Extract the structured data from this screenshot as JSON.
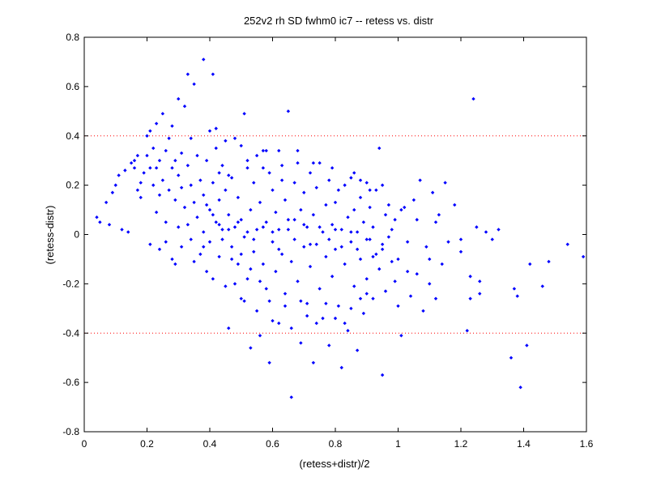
{
  "chart_data": {
    "type": "scatter",
    "title": "252v2 rh SD fwhm0 ic7 -- retess vs. distr",
    "xlabel": "(retess+distr)/2",
    "ylabel": "(retess-distr)",
    "xlim": [
      0,
      1.6
    ],
    "ylim": [
      -0.8,
      0.8
    ],
    "xticks": [
      "0",
      "0.2",
      "0.4",
      "0.6",
      "0.8",
      "1",
      "1.2",
      "1.4",
      "1.6"
    ],
    "yticks": [
      "0.8",
      "0.6",
      "0.4",
      "0.2",
      "0",
      "-0.2",
      "-0.4",
      "-0.6",
      "-0.8"
    ],
    "grid": false,
    "reference_lines": [
      0.4,
      -0.4
    ],
    "colors": {
      "points": "#0000ff",
      "reference_lines": "#ff0000",
      "axes": "#000000"
    },
    "points": [
      [
        0.04,
        0.07
      ],
      [
        0.05,
        0.05
      ],
      [
        0.07,
        0.13
      ],
      [
        0.08,
        0.04
      ],
      [
        0.09,
        0.17
      ],
      [
        0.1,
        0.2
      ],
      [
        0.11,
        0.24
      ],
      [
        0.12,
        0.02
      ],
      [
        0.13,
        0.26
      ],
      [
        0.14,
        0.01
      ],
      [
        0.15,
        0.29
      ],
      [
        0.16,
        0.3
      ],
      [
        0.16,
        0.27
      ],
      [
        0.17,
        0.32
      ],
      [
        0.17,
        0.18
      ],
      [
        0.18,
        0.15
      ],
      [
        0.18,
        0.21
      ],
      [
        0.19,
        0.25
      ],
      [
        0.2,
        0.4
      ],
      [
        0.2,
        0.32
      ],
      [
        0.21,
        0.42
      ],
      [
        0.21,
        0.27
      ],
      [
        0.21,
        -0.04
      ],
      [
        0.22,
        0.2
      ],
      [
        0.22,
        0.35
      ],
      [
        0.23,
        0.45
      ],
      [
        0.23,
        0.27
      ],
      [
        0.23,
        0.09
      ],
      [
        0.24,
        0.3
      ],
      [
        0.24,
        0.16
      ],
      [
        0.24,
        -0.06
      ],
      [
        0.25,
        0.49
      ],
      [
        0.25,
        0.22
      ],
      [
        0.26,
        0.34
      ],
      [
        0.26,
        0.05
      ],
      [
        0.26,
        -0.03
      ],
      [
        0.27,
        0.39
      ],
      [
        0.27,
        0.18
      ],
      [
        0.28,
        0.44
      ],
      [
        0.28,
        0.27
      ],
      [
        0.28,
        -0.1
      ],
      [
        0.29,
        0.3
      ],
      [
        0.29,
        0.14
      ],
      [
        0.29,
        -0.12
      ],
      [
        0.3,
        0.55
      ],
      [
        0.3,
        0.24
      ],
      [
        0.3,
        0.03
      ],
      [
        0.31,
        0.33
      ],
      [
        0.31,
        0.19
      ],
      [
        0.31,
        -0.05
      ],
      [
        0.32,
        0.52
      ],
      [
        0.32,
        0.11
      ],
      [
        0.33,
        0.28
      ],
      [
        0.33,
        0.04
      ],
      [
        0.33,
        0.65
      ],
      [
        0.34,
        0.39
      ],
      [
        0.34,
        0.2
      ],
      [
        0.34,
        -0.02
      ],
      [
        0.35,
        0.61
      ],
      [
        0.35,
        0.13
      ],
      [
        0.35,
        -0.11
      ],
      [
        0.36,
        0.32
      ],
      [
        0.36,
        0.07
      ],
      [
        0.37,
        0.22
      ],
      [
        0.37,
        -0.08
      ],
      [
        0.38,
        0.71
      ],
      [
        0.38,
        0.16
      ],
      [
        0.38,
        0.01
      ],
      [
        0.39,
        0.3
      ],
      [
        0.39,
        -0.15
      ],
      [
        0.4,
        0.42
      ],
      [
        0.4,
        0.1
      ],
      [
        0.4,
        -0.03
      ],
      [
        0.41,
        0.21
      ],
      [
        0.41,
        0.65
      ],
      [
        0.41,
        -0.18
      ],
      [
        0.42,
        0.35
      ],
      [
        0.42,
        0.05
      ],
      [
        0.43,
        0.14
      ],
      [
        0.43,
        -0.09
      ],
      [
        0.44,
        0.28
      ],
      [
        0.44,
        0.02
      ],
      [
        0.45,
        -0.21
      ],
      [
        0.45,
        0.18
      ],
      [
        0.46,
        0.08
      ],
      [
        0.46,
        -0.38
      ],
      [
        0.47,
        0.23
      ],
      [
        0.47,
        -0.05
      ],
      [
        0.48,
        0.39
      ],
      [
        0.48,
        0.03
      ],
      [
        0.49,
        -0.12
      ],
      [
        0.49,
        0.15
      ],
      [
        0.5,
        -0.26
      ],
      [
        0.5,
        0.06
      ],
      [
        0.51,
        0.49
      ],
      [
        0.51,
        -0.01
      ],
      [
        0.52,
        0.3
      ],
      [
        0.52,
        -0.18
      ],
      [
        0.53,
        0.1
      ],
      [
        0.53,
        -0.46
      ],
      [
        0.54,
        -0.07
      ],
      [
        0.54,
        0.21
      ],
      [
        0.55,
        0.02
      ],
      [
        0.55,
        -0.31
      ],
      [
        0.56,
        0.13
      ],
      [
        0.56,
        -0.41
      ],
      [
        0.57,
        -0.12
      ],
      [
        0.57,
        0.34
      ],
      [
        0.58,
        0.05
      ],
      [
        0.58,
        -0.22
      ],
      [
        0.59,
        0.25
      ],
      [
        0.59,
        -0.52
      ],
      [
        0.6,
        -0.03
      ],
      [
        0.6,
        0.18
      ],
      [
        0.61,
        -0.15
      ],
      [
        0.61,
        0.09
      ],
      [
        0.62,
        -0.36
      ],
      [
        0.62,
        0.02
      ],
      [
        0.63,
        0.28
      ],
      [
        0.63,
        -0.08
      ],
      [
        0.64,
        0.14
      ],
      [
        0.64,
        -0.24
      ],
      [
        0.65,
        0.5
      ],
      [
        0.65,
        0.06
      ],
      [
        0.66,
        -0.66
      ],
      [
        0.66,
        -0.11
      ],
      [
        0.67,
        0.21
      ],
      [
        0.67,
        -0.02
      ],
      [
        0.68,
        0.34
      ],
      [
        0.68,
        -0.19
      ],
      [
        0.69,
        0.1
      ],
      [
        0.69,
        -0.44
      ],
      [
        0.7,
        -0.05
      ],
      [
        0.7,
        0.17
      ],
      [
        0.71,
        -0.28
      ],
      [
        0.71,
        0.03
      ],
      [
        0.72,
        0.25
      ],
      [
        0.72,
        -0.13
      ],
      [
        0.73,
        0.08
      ],
      [
        0.73,
        -0.52
      ],
      [
        0.74,
        -0.04
      ],
      [
        0.74,
        0.19
      ],
      [
        0.75,
        -0.22
      ],
      [
        0.75,
        0.29
      ],
      [
        0.76,
        0.01
      ],
      [
        0.76,
        -0.34
      ],
      [
        0.77,
        0.12
      ],
      [
        0.77,
        -0.09
      ],
      [
        0.78,
        0.22
      ],
      [
        0.78,
        -0.45
      ],
      [
        0.79,
        0.04
      ],
      [
        0.79,
        -0.17
      ],
      [
        0.8,
        0.13
      ],
      [
        0.8,
        -0.06
      ],
      [
        0.81,
        0.18
      ],
      [
        0.81,
        -0.29
      ],
      [
        0.82,
        0.02
      ],
      [
        0.82,
        -0.54
      ],
      [
        0.83,
        0.2
      ],
      [
        0.83,
        -0.12
      ],
      [
        0.84,
        0.07
      ],
      [
        0.84,
        -0.39
      ],
      [
        0.85,
        0.23
      ],
      [
        0.85,
        -0.03
      ],
      [
        0.86,
        -0.21
      ],
      [
        0.86,
        0.1
      ],
      [
        0.87,
        -0.47
      ],
      [
        0.87,
        0.01
      ],
      [
        0.88,
        0.15
      ],
      [
        0.88,
        -0.1
      ],
      [
        0.89,
        -0.32
      ],
      [
        0.89,
        0.05
      ],
      [
        0.9,
        0.21
      ],
      [
        0.9,
        -0.18
      ],
      [
        0.91,
        -0.02
      ],
      [
        0.91,
        0.11
      ],
      [
        0.92,
        -0.26
      ],
      [
        0.92,
        0.03
      ],
      [
        0.93,
        0.18
      ],
      [
        0.93,
        -0.08
      ],
      [
        0.94,
        -0.14
      ],
      [
        0.94,
        0.35
      ],
      [
        0.95,
        -0.04
      ],
      [
        0.95,
        -0.57
      ],
      [
        0.96,
        0.08
      ],
      [
        0.96,
        -0.23
      ],
      [
        0.97,
        0.12
      ],
      [
        0.97,
        -0.01
      ],
      [
        0.98,
        -0.11
      ],
      [
        0.98,
        0.02
      ],
      [
        0.99,
        -0.19
      ],
      [
        0.99,
        0.06
      ],
      [
        1.0,
        -0.29
      ],
      [
        1.01,
        -0.41
      ],
      [
        1.02,
        0.11
      ],
      [
        1.03,
        -0.03
      ],
      [
        1.04,
        -0.25
      ],
      [
        1.05,
        0.14
      ],
      [
        1.06,
        -0.16
      ],
      [
        1.07,
        0.22
      ],
      [
        1.08,
        -0.31
      ],
      [
        1.09,
        -0.05
      ],
      [
        1.1,
        -0.2
      ],
      [
        1.11,
        0.17
      ],
      [
        1.12,
        -0.26
      ],
      [
        1.13,
        0.08
      ],
      [
        1.14,
        -0.12
      ],
      [
        1.15,
        0.21
      ],
      [
        1.16,
        -0.03
      ],
      [
        1.18,
        0.12
      ],
      [
        1.2,
        -0.07
      ],
      [
        1.22,
        -0.39
      ],
      [
        1.23,
        -0.26
      ],
      [
        1.24,
        0.55
      ],
      [
        1.25,
        0.03
      ],
      [
        1.26,
        -0.24
      ],
      [
        1.28,
        0.01
      ],
      [
        1.3,
        -0.02
      ],
      [
        1.32,
        0.02
      ],
      [
        1.36,
        -0.5
      ],
      [
        1.37,
        -0.22
      ],
      [
        1.39,
        -0.62
      ],
      [
        1.41,
        -0.45
      ],
      [
        1.42,
        -0.12
      ],
      [
        1.46,
        -0.21
      ],
      [
        1.48,
        -0.11
      ],
      [
        1.54,
        -0.04
      ],
      [
        1.59,
        -0.09
      ],
      [
        0.42,
        0.43
      ],
      [
        0.45,
        0.38
      ],
      [
        0.5,
        0.36
      ],
      [
        0.55,
        0.32
      ],
      [
        0.58,
        0.34
      ],
      [
        0.62,
        0.34
      ],
      [
        0.43,
        0.25
      ],
      [
        0.46,
        0.24
      ],
      [
        0.52,
        0.27
      ],
      [
        0.57,
        0.27
      ],
      [
        0.63,
        0.22
      ],
      [
        0.68,
        0.29
      ],
      [
        0.73,
        0.29
      ],
      [
        0.79,
        0.27
      ],
      [
        0.86,
        0.25
      ],
      [
        0.88,
        0.22
      ],
      [
        0.91,
        0.18
      ],
      [
        0.95,
        0.2
      ],
      [
        0.44,
        -0.02
      ],
      [
        0.47,
        -0.1
      ],
      [
        0.48,
        -0.2
      ],
      [
        0.51,
        -0.27
      ],
      [
        0.53,
        -0.14
      ],
      [
        0.56,
        -0.19
      ],
      [
        0.59,
        -0.27
      ],
      [
        0.6,
        -0.35
      ],
      [
        0.64,
        -0.29
      ],
      [
        0.66,
        -0.38
      ],
      [
        0.69,
        -0.27
      ],
      [
        0.71,
        -0.33
      ],
      [
        0.74,
        -0.36
      ],
      [
        0.77,
        -0.28
      ],
      [
        0.8,
        -0.34
      ],
      [
        0.83,
        -0.36
      ],
      [
        0.85,
        -0.3
      ],
      [
        0.88,
        -0.26
      ],
      [
        0.9,
        -0.24
      ],
      [
        0.38,
        -0.05
      ],
      [
        0.39,
        0.12
      ],
      [
        0.41,
        0.08
      ],
      [
        0.43,
        0.04
      ],
      [
        0.46,
        0.02
      ],
      [
        0.49,
        0.05
      ],
      [
        0.5,
        -0.08
      ],
      [
        0.52,
        0.01
      ],
      [
        0.54,
        -0.02
      ],
      [
        0.57,
        0.03
      ],
      [
        0.6,
        0.01
      ],
      [
        0.62,
        -0.06
      ],
      [
        0.65,
        0.02
      ],
      [
        0.67,
        0.06
      ],
      [
        0.7,
        0.04
      ],
      [
        0.72,
        -0.04
      ],
      [
        0.75,
        0.03
      ],
      [
        0.78,
        -0.02
      ],
      [
        0.8,
        0.02
      ],
      [
        0.82,
        -0.05
      ],
      [
        0.85,
        0.01
      ],
      [
        0.87,
        -0.06
      ],
      [
        0.9,
        -0.02
      ],
      [
        0.92,
        -0.09
      ],
      [
        0.95,
        -0.06
      ],
      [
        1.0,
        -0.1
      ],
      [
        1.01,
        0.1
      ],
      [
        1.03,
        -0.15
      ],
      [
        1.06,
        0.06
      ],
      [
        1.1,
        -0.1
      ],
      [
        1.12,
        0.05
      ],
      [
        1.2,
        -0.02
      ],
      [
        1.23,
        -0.17
      ],
      [
        1.26,
        -0.19
      ],
      [
        1.38,
        -0.25
      ]
    ]
  }
}
